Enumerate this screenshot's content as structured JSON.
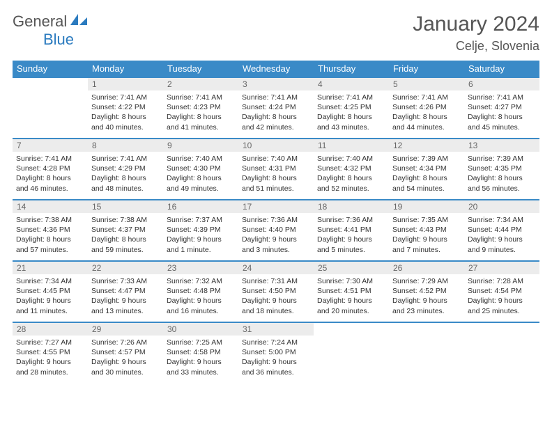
{
  "logo": {
    "word1": "General",
    "word2": "Blue"
  },
  "title": "January 2024",
  "location": "Celje, Slovenia",
  "colors": {
    "header_bg": "#3a8ac7",
    "header_text": "#ffffff",
    "daynum_bg": "#ececec",
    "border": "#3a8ac7",
    "text": "#333333",
    "title_text": "#555555",
    "logo_blue": "#2b7bbf"
  },
  "typography": {
    "title_fontsize": 30,
    "location_fontsize": 18,
    "dayheader_fontsize": 13,
    "cell_fontsize": 10.5
  },
  "day_headers": [
    "Sunday",
    "Monday",
    "Tuesday",
    "Wednesday",
    "Thursday",
    "Friday",
    "Saturday"
  ],
  "weeks": [
    [
      {
        "num": "",
        "lines": [
          "",
          "",
          "",
          ""
        ]
      },
      {
        "num": "1",
        "lines": [
          "Sunrise: 7:41 AM",
          "Sunset: 4:22 PM",
          "Daylight: 8 hours",
          "and 40 minutes."
        ]
      },
      {
        "num": "2",
        "lines": [
          "Sunrise: 7:41 AM",
          "Sunset: 4:23 PM",
          "Daylight: 8 hours",
          "and 41 minutes."
        ]
      },
      {
        "num": "3",
        "lines": [
          "Sunrise: 7:41 AM",
          "Sunset: 4:24 PM",
          "Daylight: 8 hours",
          "and 42 minutes."
        ]
      },
      {
        "num": "4",
        "lines": [
          "Sunrise: 7:41 AM",
          "Sunset: 4:25 PM",
          "Daylight: 8 hours",
          "and 43 minutes."
        ]
      },
      {
        "num": "5",
        "lines": [
          "Sunrise: 7:41 AM",
          "Sunset: 4:26 PM",
          "Daylight: 8 hours",
          "and 44 minutes."
        ]
      },
      {
        "num": "6",
        "lines": [
          "Sunrise: 7:41 AM",
          "Sunset: 4:27 PM",
          "Daylight: 8 hours",
          "and 45 minutes."
        ]
      }
    ],
    [
      {
        "num": "7",
        "lines": [
          "Sunrise: 7:41 AM",
          "Sunset: 4:28 PM",
          "Daylight: 8 hours",
          "and 46 minutes."
        ]
      },
      {
        "num": "8",
        "lines": [
          "Sunrise: 7:41 AM",
          "Sunset: 4:29 PM",
          "Daylight: 8 hours",
          "and 48 minutes."
        ]
      },
      {
        "num": "9",
        "lines": [
          "Sunrise: 7:40 AM",
          "Sunset: 4:30 PM",
          "Daylight: 8 hours",
          "and 49 minutes."
        ]
      },
      {
        "num": "10",
        "lines": [
          "Sunrise: 7:40 AM",
          "Sunset: 4:31 PM",
          "Daylight: 8 hours",
          "and 51 minutes."
        ]
      },
      {
        "num": "11",
        "lines": [
          "Sunrise: 7:40 AM",
          "Sunset: 4:32 PM",
          "Daylight: 8 hours",
          "and 52 minutes."
        ]
      },
      {
        "num": "12",
        "lines": [
          "Sunrise: 7:39 AM",
          "Sunset: 4:34 PM",
          "Daylight: 8 hours",
          "and 54 minutes."
        ]
      },
      {
        "num": "13",
        "lines": [
          "Sunrise: 7:39 AM",
          "Sunset: 4:35 PM",
          "Daylight: 8 hours",
          "and 56 minutes."
        ]
      }
    ],
    [
      {
        "num": "14",
        "lines": [
          "Sunrise: 7:38 AM",
          "Sunset: 4:36 PM",
          "Daylight: 8 hours",
          "and 57 minutes."
        ]
      },
      {
        "num": "15",
        "lines": [
          "Sunrise: 7:38 AM",
          "Sunset: 4:37 PM",
          "Daylight: 8 hours",
          "and 59 minutes."
        ]
      },
      {
        "num": "16",
        "lines": [
          "Sunrise: 7:37 AM",
          "Sunset: 4:39 PM",
          "Daylight: 9 hours",
          "and 1 minute."
        ]
      },
      {
        "num": "17",
        "lines": [
          "Sunrise: 7:36 AM",
          "Sunset: 4:40 PM",
          "Daylight: 9 hours",
          "and 3 minutes."
        ]
      },
      {
        "num": "18",
        "lines": [
          "Sunrise: 7:36 AM",
          "Sunset: 4:41 PM",
          "Daylight: 9 hours",
          "and 5 minutes."
        ]
      },
      {
        "num": "19",
        "lines": [
          "Sunrise: 7:35 AM",
          "Sunset: 4:43 PM",
          "Daylight: 9 hours",
          "and 7 minutes."
        ]
      },
      {
        "num": "20",
        "lines": [
          "Sunrise: 7:34 AM",
          "Sunset: 4:44 PM",
          "Daylight: 9 hours",
          "and 9 minutes."
        ]
      }
    ],
    [
      {
        "num": "21",
        "lines": [
          "Sunrise: 7:34 AM",
          "Sunset: 4:45 PM",
          "Daylight: 9 hours",
          "and 11 minutes."
        ]
      },
      {
        "num": "22",
        "lines": [
          "Sunrise: 7:33 AM",
          "Sunset: 4:47 PM",
          "Daylight: 9 hours",
          "and 13 minutes."
        ]
      },
      {
        "num": "23",
        "lines": [
          "Sunrise: 7:32 AM",
          "Sunset: 4:48 PM",
          "Daylight: 9 hours",
          "and 16 minutes."
        ]
      },
      {
        "num": "24",
        "lines": [
          "Sunrise: 7:31 AM",
          "Sunset: 4:50 PM",
          "Daylight: 9 hours",
          "and 18 minutes."
        ]
      },
      {
        "num": "25",
        "lines": [
          "Sunrise: 7:30 AM",
          "Sunset: 4:51 PM",
          "Daylight: 9 hours",
          "and 20 minutes."
        ]
      },
      {
        "num": "26",
        "lines": [
          "Sunrise: 7:29 AM",
          "Sunset: 4:52 PM",
          "Daylight: 9 hours",
          "and 23 minutes."
        ]
      },
      {
        "num": "27",
        "lines": [
          "Sunrise: 7:28 AM",
          "Sunset: 4:54 PM",
          "Daylight: 9 hours",
          "and 25 minutes."
        ]
      }
    ],
    [
      {
        "num": "28",
        "lines": [
          "Sunrise: 7:27 AM",
          "Sunset: 4:55 PM",
          "Daylight: 9 hours",
          "and 28 minutes."
        ]
      },
      {
        "num": "29",
        "lines": [
          "Sunrise: 7:26 AM",
          "Sunset: 4:57 PM",
          "Daylight: 9 hours",
          "and 30 minutes."
        ]
      },
      {
        "num": "30",
        "lines": [
          "Sunrise: 7:25 AM",
          "Sunset: 4:58 PM",
          "Daylight: 9 hours",
          "and 33 minutes."
        ]
      },
      {
        "num": "31",
        "lines": [
          "Sunrise: 7:24 AM",
          "Sunset: 5:00 PM",
          "Daylight: 9 hours",
          "and 36 minutes."
        ]
      },
      {
        "num": "",
        "lines": [
          "",
          "",
          "",
          ""
        ]
      },
      {
        "num": "",
        "lines": [
          "",
          "",
          "",
          ""
        ]
      },
      {
        "num": "",
        "lines": [
          "",
          "",
          "",
          ""
        ]
      }
    ]
  ]
}
